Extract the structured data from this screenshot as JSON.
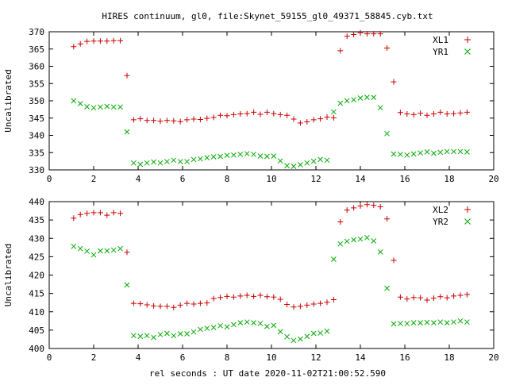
{
  "title": "HIRES continuum, gl0, file:Skynet_59155_gl0_49371_58845.cyb.txt",
  "xlabel": "rel seconds : UT date 2020-11-02T21:00:52.590",
  "colors": {
    "series_a": "#cc0000",
    "series_b": "#00aa00",
    "axis": "#000000"
  },
  "chart_data": [
    {
      "type": "scatter",
      "ylabel": "Uncalibrated",
      "xlim": [
        0,
        20
      ],
      "ylim": [
        330,
        370
      ],
      "xticks": [
        0,
        2,
        4,
        6,
        8,
        10,
        12,
        14,
        16,
        18,
        20
      ],
      "yticks": [
        330,
        335,
        340,
        345,
        350,
        355,
        360,
        365,
        370
      ],
      "legend_position": "top-right",
      "series": [
        {
          "name": "XL1",
          "marker": "plus",
          "color": "#cc0000",
          "x": [
            1.1,
            1.4,
            1.7,
            2.0,
            2.3,
            2.6,
            2.9,
            3.2,
            3.5,
            3.8,
            4.1,
            4.4,
            4.7,
            5.0,
            5.3,
            5.6,
            5.9,
            6.2,
            6.5,
            6.8,
            7.1,
            7.4,
            7.7,
            8.0,
            8.3,
            8.6,
            8.9,
            9.2,
            9.5,
            9.8,
            10.1,
            10.4,
            10.7,
            11.0,
            11.3,
            11.6,
            11.9,
            12.2,
            12.5,
            12.8,
            13.1,
            13.4,
            13.7,
            14.0,
            14.3,
            14.6,
            14.9,
            15.2,
            15.5,
            15.8,
            16.1,
            16.4,
            16.7,
            17.0,
            17.3,
            17.6,
            17.9,
            18.2,
            18.5,
            18.8
          ],
          "y": [
            365.7,
            366.5,
            367.2,
            367.3,
            367.3,
            367.3,
            367.4,
            367.4,
            357.3,
            344.5,
            344.8,
            344.3,
            344.3,
            344.1,
            344.3,
            344.2,
            344.0,
            344.5,
            344.7,
            344.6,
            344.9,
            345.2,
            345.8,
            345.7,
            346.0,
            346.2,
            346.3,
            346.7,
            346.1,
            346.7,
            346.3,
            346.0,
            345.8,
            344.7,
            343.6,
            343.9,
            344.5,
            344.8,
            345.3,
            345.1,
            364.5,
            368.7,
            369.2,
            369.7,
            369.4,
            369.4,
            369.4,
            365.3,
            355.5,
            346.6,
            346.2,
            346.0,
            346.4,
            345.8,
            346.2,
            346.7,
            346.2,
            346.3,
            346.5,
            346.7
          ]
        },
        {
          "name": "YR1",
          "marker": "cross",
          "color": "#00aa00",
          "x": [
            1.1,
            1.4,
            1.7,
            2.0,
            2.3,
            2.6,
            2.9,
            3.2,
            3.5,
            3.8,
            4.1,
            4.4,
            4.7,
            5.0,
            5.3,
            5.6,
            5.9,
            6.2,
            6.5,
            6.8,
            7.1,
            7.4,
            7.7,
            8.0,
            8.3,
            8.6,
            8.9,
            9.2,
            9.5,
            9.8,
            10.1,
            10.4,
            10.7,
            11.0,
            11.3,
            11.6,
            11.9,
            12.2,
            12.5,
            12.8,
            13.1,
            13.4,
            13.7,
            14.0,
            14.3,
            14.6,
            14.9,
            15.2,
            15.5,
            15.8,
            16.1,
            16.4,
            16.7,
            17.0,
            17.3,
            17.6,
            17.9,
            18.2,
            18.5,
            18.8
          ],
          "y": [
            350.0,
            349.2,
            348.3,
            348.0,
            348.2,
            348.4,
            348.2,
            348.2,
            341.0,
            332.0,
            331.6,
            332.0,
            332.3,
            332.0,
            332.4,
            332.8,
            332.4,
            332.4,
            333.0,
            333.2,
            333.5,
            333.8,
            333.9,
            334.2,
            334.3,
            334.5,
            334.7,
            334.5,
            334.0,
            333.9,
            334.0,
            332.6,
            331.2,
            331.0,
            331.5,
            332.0,
            332.5,
            333.0,
            332.8,
            346.8,
            349.3,
            350.0,
            350.3,
            350.8,
            351.0,
            351.0,
            348.0,
            340.5,
            334.6,
            334.5,
            334.3,
            334.6,
            334.9,
            335.2,
            334.8,
            335.1,
            335.3,
            335.3,
            335.3,
            335.2
          ]
        }
      ]
    },
    {
      "type": "scatter",
      "ylabel": "Uncalibrated",
      "xlim": [
        0,
        20
      ],
      "ylim": [
        400,
        440
      ],
      "xticks": [
        0,
        2,
        4,
        6,
        8,
        10,
        12,
        14,
        16,
        18,
        20
      ],
      "yticks": [
        400,
        405,
        410,
        415,
        420,
        425,
        430,
        435,
        440
      ],
      "legend_position": "top-right",
      "series": [
        {
          "name": "XL2",
          "marker": "plus",
          "color": "#cc0000",
          "x": [
            1.1,
            1.4,
            1.7,
            2.0,
            2.3,
            2.6,
            2.9,
            3.2,
            3.5,
            3.8,
            4.1,
            4.4,
            4.7,
            5.0,
            5.3,
            5.6,
            5.9,
            6.2,
            6.5,
            6.8,
            7.1,
            7.4,
            7.7,
            8.0,
            8.3,
            8.6,
            8.9,
            9.2,
            9.5,
            9.8,
            10.1,
            10.4,
            10.7,
            11.0,
            11.3,
            11.6,
            11.9,
            12.2,
            12.5,
            12.8,
            13.1,
            13.4,
            13.7,
            14.0,
            14.3,
            14.6,
            14.9,
            15.2,
            15.5,
            15.8,
            16.1,
            16.4,
            16.7,
            17.0,
            17.3,
            17.6,
            17.9,
            18.2,
            18.5,
            18.8
          ],
          "y": [
            435.5,
            436.5,
            436.8,
            437.0,
            437.0,
            436.3,
            437.0,
            436.8,
            426.2,
            412.3,
            412.2,
            411.9,
            411.6,
            411.5,
            411.5,
            411.2,
            411.8,
            412.3,
            412.1,
            412.3,
            412.4,
            413.6,
            413.9,
            414.2,
            414.0,
            414.3,
            414.5,
            414.2,
            414.5,
            414.1,
            414.0,
            413.4,
            412.0,
            411.3,
            411.5,
            411.8,
            412.1,
            412.3,
            412.6,
            413.3,
            434.5,
            437.7,
            438.3,
            438.8,
            439.2,
            439.0,
            438.6,
            435.3,
            424.0,
            414.0,
            413.5,
            413.9,
            413.8,
            413.2,
            413.7,
            414.1,
            413.8,
            414.3,
            414.5,
            414.7
          ]
        },
        {
          "name": "YR2",
          "marker": "cross",
          "color": "#00aa00",
          "x": [
            1.1,
            1.4,
            1.7,
            2.0,
            2.3,
            2.6,
            2.9,
            3.2,
            3.5,
            3.8,
            4.1,
            4.4,
            4.7,
            5.0,
            5.3,
            5.6,
            5.9,
            6.2,
            6.5,
            6.8,
            7.1,
            7.4,
            7.7,
            8.0,
            8.3,
            8.6,
            8.9,
            9.2,
            9.5,
            9.8,
            10.1,
            10.4,
            10.7,
            11.0,
            11.3,
            11.6,
            11.9,
            12.2,
            12.5,
            12.8,
            13.1,
            13.4,
            13.7,
            14.0,
            14.3,
            14.6,
            14.9,
            15.2,
            15.5,
            15.8,
            16.1,
            16.4,
            16.7,
            17.0,
            17.3,
            17.6,
            17.9,
            18.2,
            18.5,
            18.8
          ],
          "y": [
            427.8,
            427.2,
            426.5,
            425.5,
            426.6,
            426.6,
            426.8,
            427.2,
            417.3,
            403.5,
            403.3,
            403.5,
            403.0,
            403.8,
            404.1,
            403.5,
            404.0,
            404.0,
            404.5,
            405.2,
            405.5,
            405.7,
            406.2,
            405.9,
            406.5,
            407.0,
            407.2,
            407.0,
            406.8,
            406.0,
            406.3,
            404.6,
            403.2,
            402.2,
            402.6,
            403.3,
            404.1,
            404.2,
            404.7,
            424.3,
            428.5,
            429.2,
            429.6,
            429.8,
            430.2,
            429.3,
            426.3,
            416.4,
            406.7,
            406.8,
            406.8,
            407.0,
            407.0,
            407.1,
            407.0,
            407.2,
            407.0,
            407.2,
            407.5,
            407.2
          ]
        }
      ]
    }
  ]
}
